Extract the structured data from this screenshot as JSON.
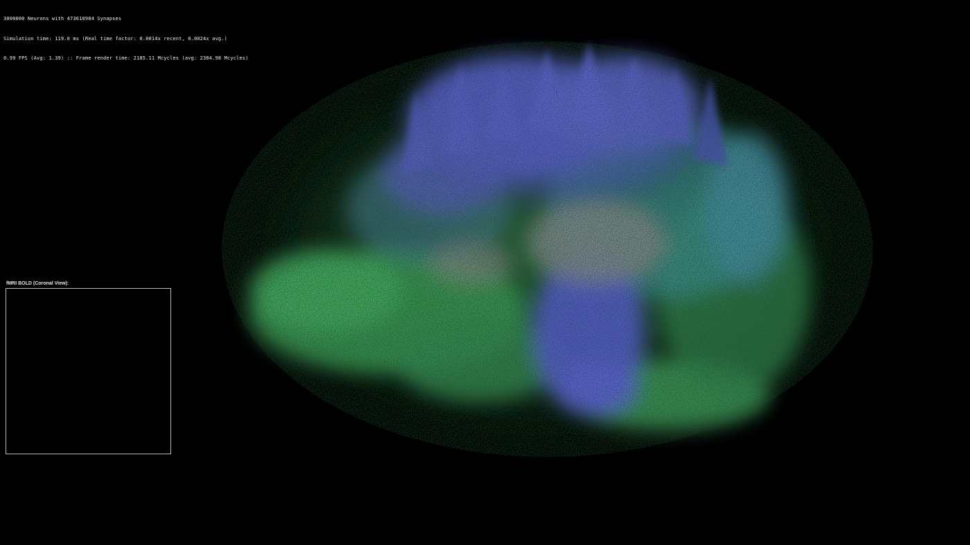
{
  "hud": {
    "line1": "3000000 Neurons with 473610984 Synapses",
    "line2": "Simulation time: 119.0 ms (Real time factor: 0.0014x recent, 0.0024x avg.)",
    "line3": "0.99 FPS (Avg: 1.39) :: Frame render time: 2185.11 Mcycles (avg: 2384.98 Mcycles)"
  },
  "fmri_panel": {
    "label": "fMRI BOLD (Coronal View):"
  },
  "colors": {
    "background": "#000000",
    "blue_region": "#5a5ad2",
    "green_region": "#3a9a5a",
    "teal_region": "#3f8f9a",
    "gray_region": "#8a8a90",
    "hud_text": "#f2f2f2",
    "panel_border": "#bdbdbd"
  }
}
